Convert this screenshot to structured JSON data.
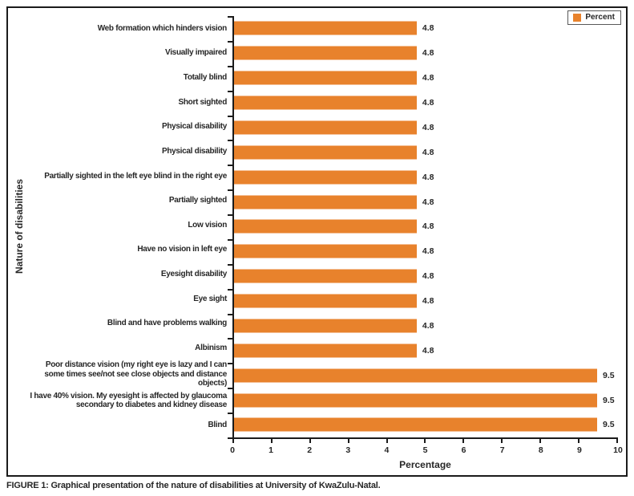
{
  "figure": {
    "caption_label": "FIGURE 1:",
    "caption_text": "Graphical presentation of the nature of disabilities at University of KwaZulu-Natal."
  },
  "colors": {
    "bar": "#E8822C",
    "axis": "#1b1b1b",
    "text": "#262626",
    "legend_border": "#595959"
  },
  "chart_data": {
    "type": "bar",
    "orientation": "horizontal",
    "title": "",
    "xlabel": "Percentage",
    "ylabel": "Nature of disabilities",
    "xlim": [
      0,
      10
    ],
    "xticks": [
      "0",
      "1",
      "2",
      "3",
      "4",
      "5",
      "6",
      "7",
      "8",
      "9",
      "10"
    ],
    "grid": false,
    "bar_color": "#E8822C",
    "legend": {
      "label": "Percent",
      "position": "top-right",
      "swatch_color": "#E8822C"
    },
    "categories": [
      "Web formation which hinders vision",
      "Visually impaired",
      "Totally blind",
      "Short sighted",
      "Physical disability",
      "Physical disability",
      "Partially sighted in the left eye blind in the right eye",
      "Partially sighted",
      "Low vision",
      "Have no vision in left eye",
      "Eyesight disability",
      "Eye sight",
      "Blind and have problems walking",
      "Albinism",
      "Poor distance vision (my right eye is lazy and I can some times see/not see close objects and distance objects)",
      "I have 40% vision. My eyesight is affected by glaucoma secondary to diabetes and kidney disease",
      "Blind"
    ],
    "values": [
      4.8,
      4.8,
      4.8,
      4.8,
      4.8,
      4.8,
      4.8,
      4.8,
      4.8,
      4.8,
      4.8,
      4.8,
      4.8,
      4.8,
      9.5,
      9.5,
      9.5
    ],
    "data_labels": [
      "4.8",
      "4.8",
      "4.8",
      "4.8",
      "4.8",
      "4.8",
      "4.8",
      "4.8",
      "4.8",
      "4.8",
      "4.8",
      "4.8",
      "4.8",
      "4.8",
      "9.5",
      "9.5",
      "9.5"
    ]
  }
}
